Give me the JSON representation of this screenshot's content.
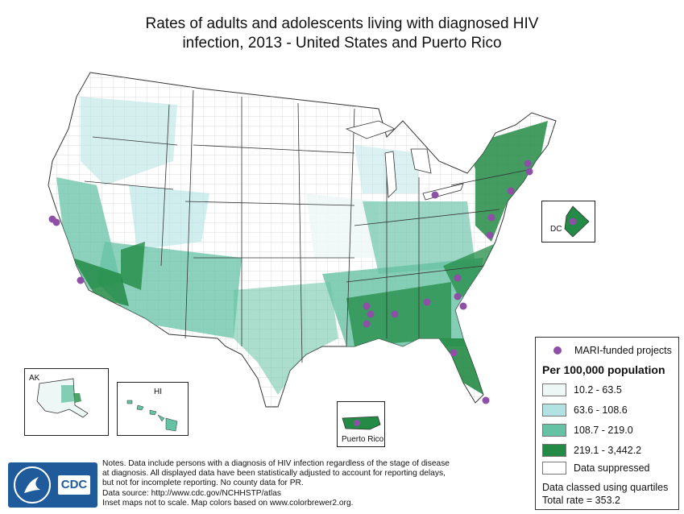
{
  "title": {
    "line1": "Rates of adults and adolescents living with diagnosed HIV",
    "line2": "infection, 2013 - United States and Puerto Rico"
  },
  "insets": {
    "ak_label": "AK",
    "hi_label": "HI",
    "pr_label": "Puerto Rico",
    "dc_label": "DC"
  },
  "legend": {
    "mari_label": "MARI-funded projects",
    "title": "Per 100,000 population",
    "classes": [
      {
        "label": "10.2 - 63.5",
        "color": "#edf8f6"
      },
      {
        "label": "63.6 - 108.6",
        "color": "#b2e2e2"
      },
      {
        "label": "108.7 - 219.0",
        "color": "#66c2a4"
      },
      {
        "label": "219.1 - 3,442.2",
        "color": "#238b45"
      },
      {
        "label": "Data suppressed",
        "color": "#ffffff"
      }
    ],
    "method": "Data classed using quartiles",
    "total": "Total rate = 353.2",
    "mari_color": "#8e4fa6"
  },
  "notes": {
    "line1": "Notes. Data include persons with a diagnosis of HIV infection regardless of the stage of disease",
    "line2": "at diagnosis. All displayed data have been statistically adjusted to account for reporting delays,",
    "line3": "but not for incomplete reporting. No county data for PR.",
    "line4": "Data source: http://www.cdc.gov/NCHHSTP/atlas",
    "line5": "Inset maps not to scale. Map colors based on www.colorbrewer2.org."
  },
  "logo": {
    "text": "CDC",
    "icon": "hhs-eagle-icon"
  }
}
